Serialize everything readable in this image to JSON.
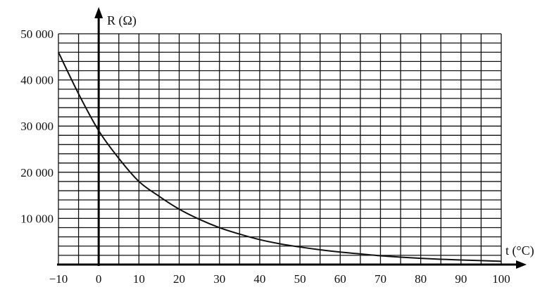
{
  "chart_data": {
    "type": "line",
    "title": "",
    "xlabel": "t (°C)",
    "ylabel": "R (Ω)",
    "xlim": [
      -10,
      100
    ],
    "ylim": [
      0,
      50000
    ],
    "x_ticks": [
      -10,
      0,
      10,
      20,
      30,
      40,
      50,
      60,
      70,
      80,
      90,
      100
    ],
    "x_tick_labels": [
      "−10",
      "0",
      "10",
      "20",
      "30",
      "40",
      "50",
      "60",
      "70",
      "80",
      "90",
      "100"
    ],
    "y_ticks": [
      10000,
      20000,
      30000,
      40000,
      50000
    ],
    "y_tick_labels": [
      "10 000",
      "20 000",
      "30 000",
      "40 000",
      "50 000"
    ],
    "grid": true,
    "grid_x_step": 5,
    "grid_y_step": 2000,
    "series": [
      {
        "x": [
          -10,
          -5,
          0,
          5,
          10,
          15,
          20,
          25,
          30,
          35,
          40,
          45,
          50,
          55,
          60,
          65,
          70,
          75,
          80,
          85,
          90,
          95,
          100
        ],
        "y": [
          46000,
          37000,
          29000,
          23000,
          18000,
          14800,
          12000,
          9800,
          8000,
          6600,
          5400,
          4500,
          3800,
          3200,
          2700,
          2300,
          1900,
          1600,
          1350,
          1150,
          1000,
          850,
          700
        ]
      }
    ]
  },
  "colors": {
    "axis": "#000000",
    "grid": "#111111",
    "curve": "#111111"
  }
}
